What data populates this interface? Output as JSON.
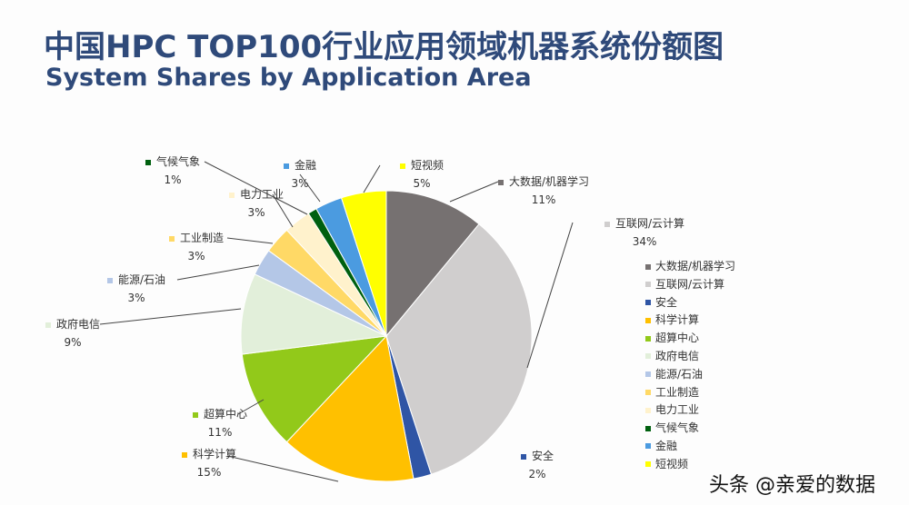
{
  "title": "中国HPC TOP100行业应用领域机器系统份额图",
  "subtitle": "System Shares by Application Area",
  "watermark": "头条 @亲爱的数据",
  "chart_data": {
    "type": "pie",
    "title": "中国HPC TOP100行业应用领域机器系统份额图",
    "subtitle": "System Shares by Application Area",
    "legend_position": "right",
    "slices": [
      {
        "label": "大数据/机器学习",
        "value": 11,
        "display": "11%",
        "color": "#767171"
      },
      {
        "label": "互联网/云计算",
        "value": 34,
        "display": "34%",
        "color": "#d0cece"
      },
      {
        "label": "安全",
        "value": 2,
        "display": "2%",
        "color": "#2f55a5"
      },
      {
        "label": "科学计算",
        "value": 15,
        "display": "15%",
        "color": "#ffc000"
      },
      {
        "label": "超算中心",
        "value": 11,
        "display": "11%",
        "color": "#92c91a"
      },
      {
        "label": "政府电信",
        "value": 9,
        "display": "9%",
        "color": "#e2efda"
      },
      {
        "label": "能源/石油",
        "value": 3,
        "display": "3%",
        "color": "#b4c7e7"
      },
      {
        "label": "工业制造",
        "value": 3,
        "display": "3%",
        "color": "#ffd966"
      },
      {
        "label": "电力工业",
        "value": 3,
        "display": "3%",
        "color": "#fff2cc"
      },
      {
        "label": "气候气象",
        "value": 1,
        "display": "1%",
        "color": "#00600f"
      },
      {
        "label": "金融",
        "value": 3,
        "display": "3%",
        "color": "#4b9be0"
      },
      {
        "label": "短视频",
        "value": 5,
        "display": "5%",
        "color": "#ffff00"
      }
    ]
  }
}
